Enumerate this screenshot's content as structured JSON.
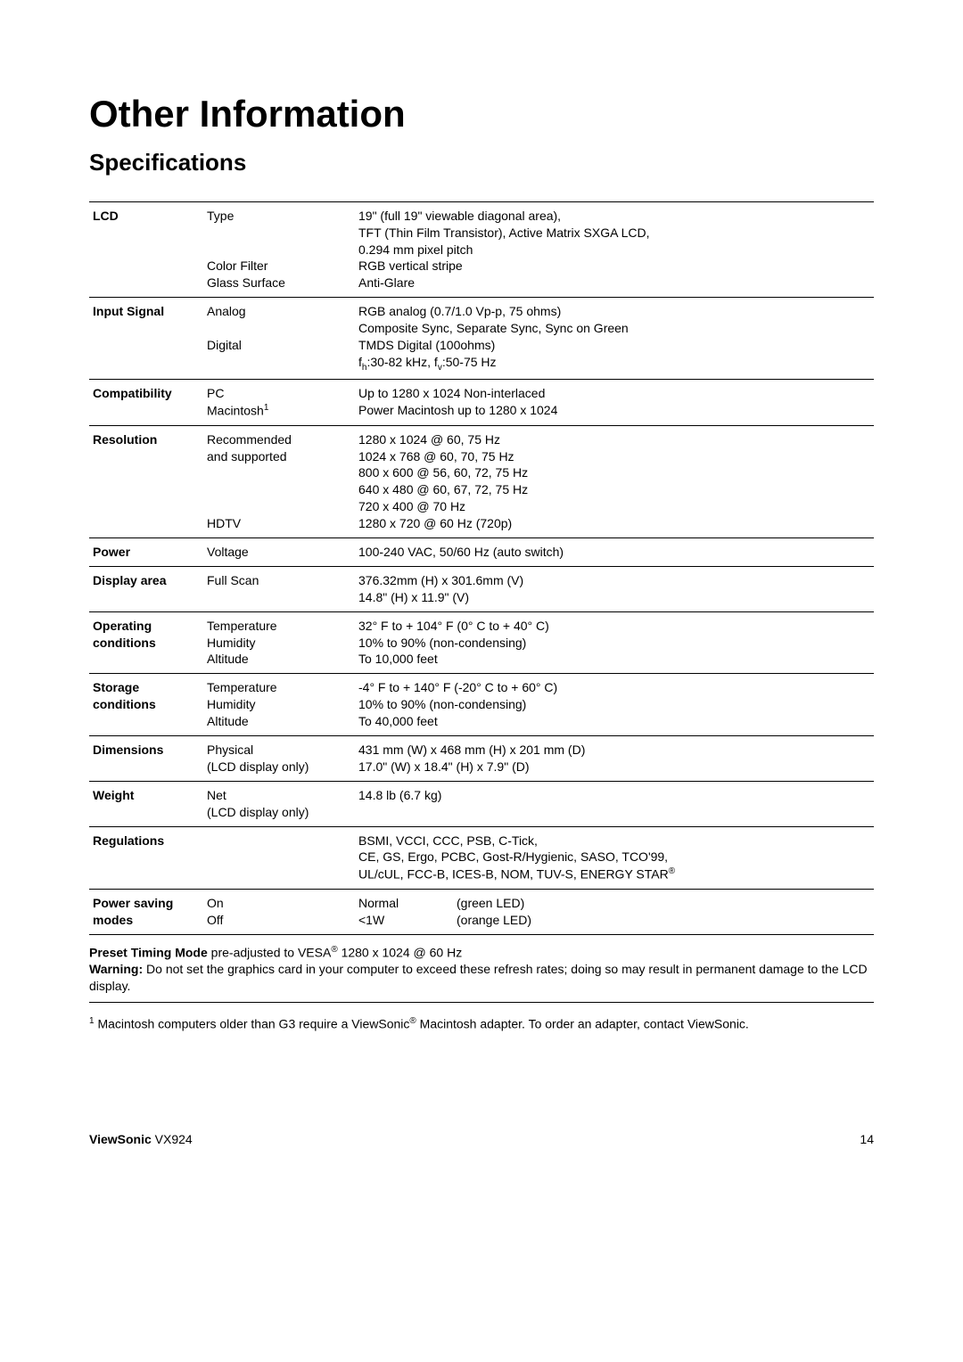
{
  "title": "Other Information",
  "subtitle": "Specifications",
  "rows": {
    "lcd": {
      "label": "LCD",
      "c2a": "Type",
      "c2b": "Color Filter",
      "c2c": "Glass Surface",
      "c3a": "19\" (full 19\" viewable diagonal area),",
      "c3b": "TFT (Thin Film Transistor), Active Matrix SXGA LCD,",
      "c3c": "0.294 mm pixel pitch",
      "c3d": "RGB vertical stripe",
      "c3e": "Anti-Glare"
    },
    "input": {
      "label": "Input Signal",
      "c2a": "Analog",
      "c2b": "Digital",
      "c3a": "RGB analog (0.7/1.0 Vp-p, 75 ohms)",
      "c3b": "Composite Sync, Separate Sync, Sync on Green",
      "c3c": "TMDS Digital (100ohms)",
      "c3d_prefix": "f",
      "c3d_sub1": "h",
      "c3d_mid": ":30-82 kHz, f",
      "c3d_sub2": "v",
      "c3d_suffix": ":50-75 Hz"
    },
    "compat": {
      "label": "Compatibility",
      "c2a": "PC",
      "c2b": "Macintosh",
      "c2b_sup": "1",
      "c3a": "Up to 1280 x 1024 Non-interlaced",
      "c3b": "Power Macintosh up to 1280 x 1024"
    },
    "res": {
      "label": "Resolution",
      "c2a": "Recommended",
      "c2b": "and supported",
      "c2c": "HDTV",
      "c3a": "1280 x 1024 @ 60, 75 Hz",
      "c3b": "1024 x 768 @ 60, 70, 75 Hz",
      "c3c": "800 x 600 @ 56, 60, 72, 75 Hz",
      "c3d": "640 x 480 @ 60, 67, 72, 75 Hz",
      "c3e": "720 x 400 @ 70 Hz",
      "c3f": "1280 x 720 @ 60 Hz (720p)"
    },
    "power": {
      "label": "Power",
      "c2a": "Voltage",
      "c3a": "100-240 VAC, 50/60 Hz (auto switch)"
    },
    "disp": {
      "label": "Display area",
      "c2a": "Full Scan",
      "c3a": "376.32mm (H) x 301.6mm (V)",
      "c3b": "14.8\" (H) x 11.9\" (V)"
    },
    "op": {
      "label": "Operating conditions",
      "c2a": "Temperature",
      "c2b": "Humidity",
      "c2c": "Altitude",
      "c3a": "32° F to + 104° F (0° C to + 40° C)",
      "c3b": "10% to 90% (non-condensing)",
      "c3c": "To 10,000 feet"
    },
    "stor": {
      "label": "Storage conditions",
      "c2a": "Temperature",
      "c2b": "Humidity",
      "c2c": "Altitude",
      "c3a": "-4° F to + 140° F (-20° C to + 60° C)",
      "c3b": "10% to 90% (non-condensing)",
      "c3c": "To 40,000 feet"
    },
    "dim": {
      "label": "Dimensions",
      "c2a": "Physical",
      "c2b": "(LCD display only)",
      "c3a": "431 mm (W) x 468 mm (H) x 201 mm (D)",
      "c3b": "17.0\" (W) x 18.4\" (H) x 7.9\" (D)"
    },
    "weight": {
      "label": "Weight",
      "c2a": "Net",
      "c2b": "(LCD display only)",
      "c3a": "14.8 lb (6.7 kg)"
    },
    "reg": {
      "label": "Regulations",
      "c3a": "BSMI, VCCI, CCC, PSB, C-Tick,",
      "c3b": "CE, GS, Ergo, PCBC, Gost-R/Hygienic, SASO, TCO'99,",
      "c3c_prefix": "UL/cUL, FCC-B, ICES-B, NOM, TUV-S, ENERGY STAR",
      "c3c_sup": "®"
    },
    "psave": {
      "label": "Power saving modes",
      "c2a": "On",
      "c2b": "Off",
      "c3a_l": "Normal",
      "c3a_r": "(green LED)",
      "c3b_l": "<1W",
      "c3b_r": "(orange LED)"
    }
  },
  "footnote1": {
    "bold": "Preset Timing Mode ",
    "rest_prefix": "pre-adjusted to VESA",
    "sup": "®",
    "rest_suffix": " 1280 x 1024 @ 60 Hz",
    "warn_bold": "Warning: ",
    "warn_rest": "Do not set the graphics card in your computer to exceed these refresh rates; doing so may result in permanent damage to the LCD display."
  },
  "footnote2": {
    "sup": "1",
    "text_prefix": " Macintosh computers older than G3 require a ViewSonic",
    "sup2": "®",
    "text_suffix": " Macintosh adapter. To order an adapter, contact ViewSonic."
  },
  "footer": {
    "brand": "ViewSonic",
    "model": "   VX924",
    "page": "14"
  }
}
